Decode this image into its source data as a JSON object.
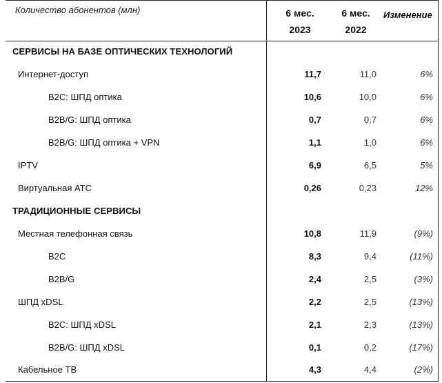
{
  "header": {
    "label": "Количество абонентов (млн)",
    "col1_line1": "6 мес.",
    "col1_line2": "2023",
    "col2_line1": "6 мес.",
    "col2_line2": "2022",
    "col3": "Изменение"
  },
  "rows": [
    {
      "label": "СЕРВИСЫ НА БАЗЕ ОПТИЧЕСКИХ ТЕХНОЛОГИЙ",
      "v2023": "",
      "v2022": "",
      "change": ""
    },
    {
      "label": "Интернет-доступ",
      "v2023": "11,7",
      "v2022": "11,0",
      "change": "6%"
    },
    {
      "label": "B2C: ШПД оптика",
      "v2023": "10,6",
      "v2022": "10,0",
      "change": "6%"
    },
    {
      "label": "B2B/G: ШПД оптика",
      "v2023": "0,7",
      "v2022": "0,7",
      "change": "6%"
    },
    {
      "label": "B2B/G: ШПД оптика + VPN",
      "v2023": "1,1",
      "v2022": "1,0",
      "change": "6%"
    },
    {
      "label": "IPTV",
      "v2023": "6,9",
      "v2022": "6,5",
      "change": "5%"
    },
    {
      "label": "Виртуальная АТС",
      "v2023": "0,26",
      "v2022": "0,23",
      "change": "12%"
    },
    {
      "label": "ТРАДИЦИОННЫЕ СЕРВИСЫ",
      "v2023": "",
      "v2022": "",
      "change": ""
    },
    {
      "label": "Местная телефонная связь",
      "v2023": "10,8",
      "v2022": "11,9",
      "change": "(9%)"
    },
    {
      "label": "B2C",
      "v2023": "8,3",
      "v2022": "9,4",
      "change": "(11%)"
    },
    {
      "label": "B2B/G",
      "v2023": "2,4",
      "v2022": "2,5",
      "change": "(3%)"
    },
    {
      "label": "ШПД xDSL",
      "v2023": "2,2",
      "v2022": "2,5",
      "change": "(13%)"
    },
    {
      "label": "B2C: ШПД xDSL",
      "v2023": "2,1",
      "v2022": "2,3",
      "change": "(13%)"
    },
    {
      "label": "B2B/G: ШПД xDSL",
      "v2023": "0,1",
      "v2022": "0,2",
      "change": "(17%)"
    },
    {
      "label": "Кабельное ТВ",
      "v2023": "4,3",
      "v2022": "4,4",
      "change": "(2%)"
    }
  ]
}
